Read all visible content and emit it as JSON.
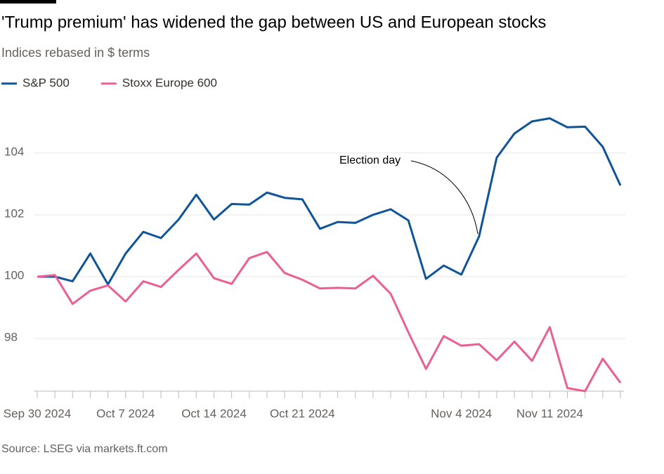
{
  "chart_data": {
    "type": "line",
    "title": "'Trump premium' has widened the gap between US and European stocks",
    "subtitle": "Indices rebased in $ terms",
    "source": "Source: LSEG via markets.ft.com",
    "annotation": "Election day",
    "categories": [
      "Sep 30 2024",
      null,
      null,
      null,
      null,
      "Oct 7 2024",
      null,
      null,
      null,
      null,
      "Oct 14 2024",
      null,
      null,
      null,
      null,
      "Oct 21 2024",
      null,
      null,
      null,
      null,
      null,
      null,
      null,
      null,
      "Nov 4 2024",
      null,
      null,
      null,
      null,
      "Nov 11 2024",
      null,
      null,
      null,
      null
    ],
    "series": [
      {
        "name": "S&P 500",
        "color": "#0f5499",
        "values": [
          100.0,
          100.0,
          99.85,
          100.75,
          99.75,
          100.75,
          101.45,
          101.25,
          101.85,
          102.65,
          101.85,
          102.35,
          102.33,
          102.72,
          102.55,
          102.5,
          101.55,
          101.77,
          101.74,
          102.0,
          102.18,
          101.82,
          99.93,
          100.36,
          100.07,
          101.3,
          103.85,
          104.63,
          105.02,
          105.12,
          104.83,
          104.85,
          104.2,
          102.95
        ]
      },
      {
        "name": "Stoxx Europe 600",
        "color": "#eb5f94",
        "values": [
          100.0,
          100.05,
          99.12,
          99.55,
          99.72,
          99.2,
          99.85,
          99.67,
          100.22,
          100.75,
          99.95,
          99.77,
          100.6,
          100.8,
          100.12,
          99.9,
          99.62,
          99.64,
          99.62,
          100.03,
          99.45,
          98.2,
          97.02,
          98.08,
          97.77,
          97.82,
          97.3,
          97.9,
          97.28,
          98.37,
          96.4,
          96.3,
          97.35,
          96.57
        ]
      }
    ],
    "ylim": [
      96.3,
      105.2
    ],
    "yticks": [
      98,
      100,
      102,
      104
    ],
    "grid": true
  }
}
